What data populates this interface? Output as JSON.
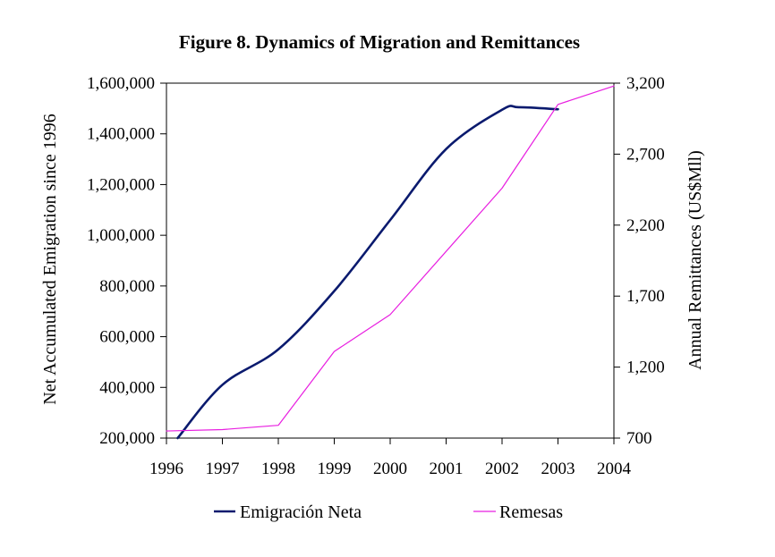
{
  "chart_data": {
    "type": "line",
    "title": "Figure 8. Dynamics of Migration and Remittances",
    "xlabel": "",
    "ylabel": "Net Accumulated Emigration since 1996",
    "y2label": "Annual Remittances (US$Mll)",
    "x_ticks": [
      "1996",
      "1997",
      "1998",
      "1999",
      "2000",
      "2001",
      "2002",
      "2003",
      "2004"
    ],
    "xlim": [
      1996,
      2004
    ],
    "ylim": [
      200000,
      1600000
    ],
    "y2lim": [
      700,
      3200
    ],
    "y_ticks": [
      {
        "value": 200000,
        "label": "200,000"
      },
      {
        "value": 400000,
        "label": "400,000"
      },
      {
        "value": 600000,
        "label": "600,000"
      },
      {
        "value": 800000,
        "label": "800,000"
      },
      {
        "value": 1000000,
        "label": "1,000,000"
      },
      {
        "value": 1200000,
        "label": "1,200,000"
      },
      {
        "value": 1400000,
        "label": "1,400,000"
      },
      {
        "value": 1600000,
        "label": "1,600,000"
      }
    ],
    "y2_ticks": [
      {
        "value": 700,
        "label": "700"
      },
      {
        "value": 1200,
        "label": "1,200"
      },
      {
        "value": 1700,
        "label": "1,700"
      },
      {
        "value": 2200,
        "label": "2,200"
      },
      {
        "value": 2700,
        "label": "2,700"
      },
      {
        "value": 3200,
        "label": "3,200"
      }
    ],
    "grid": false,
    "legend_position": "bottom",
    "series": [
      {
        "name": "Emigración Neta",
        "axis": "left",
        "color": "#0a1a6e",
        "smooth": true,
        "x": [
          1996.2,
          1997,
          1998,
          1999,
          2000,
          2001,
          2002,
          2002.3,
          2003
        ],
        "values": [
          200000,
          410000,
          550000,
          780000,
          1060000,
          1340000,
          1495000,
          1505000,
          1497000
        ]
      },
      {
        "name": "Remesas",
        "axis": "right",
        "color": "#e81ee0",
        "smooth": false,
        "x": [
          1996,
          1997,
          1998,
          1999,
          2000,
          2002,
          2003,
          2004
        ],
        "values": [
          750,
          760,
          790,
          1310,
          1570,
          2460,
          3050,
          3180
        ]
      }
    ]
  }
}
